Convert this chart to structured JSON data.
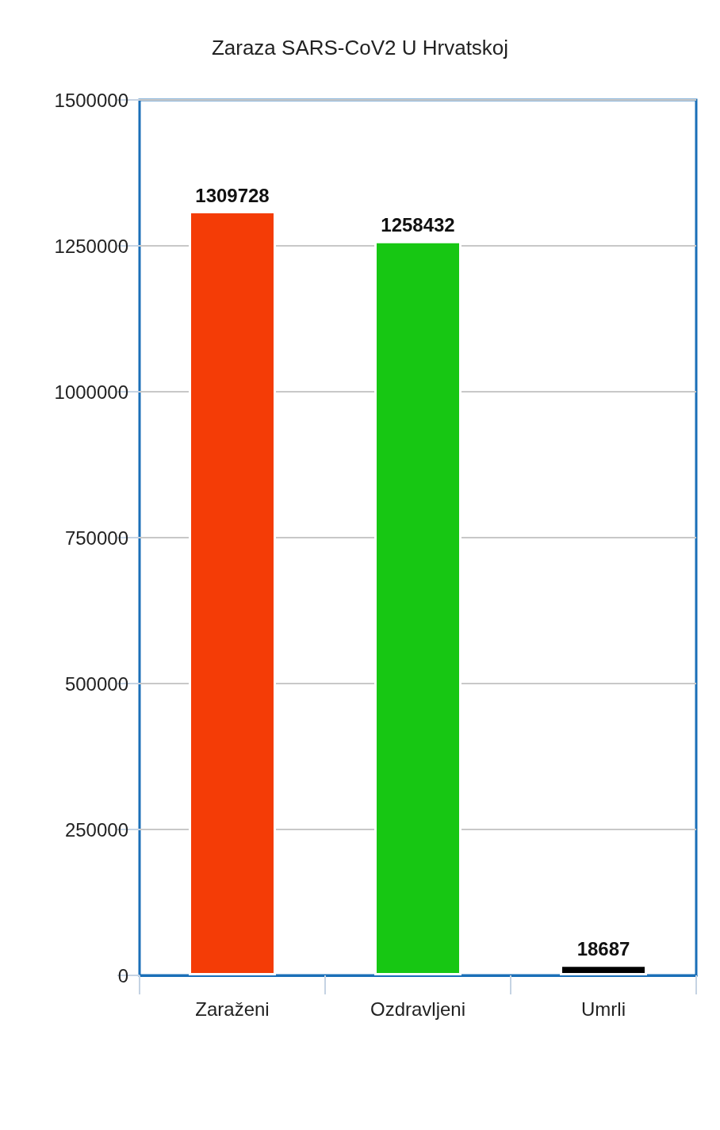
{
  "chart_data": {
    "type": "bar",
    "title": "Zaraza SARS-CoV2 U Hrvatskoj",
    "categories": [
      "Zaraženi",
      "Ozdravljeni",
      "Umrli"
    ],
    "values": [
      1309728,
      1258432,
      18687
    ],
    "colors": [
      "#f43c06",
      "#17c713",
      "#000000"
    ],
    "ylim": [
      0,
      1500000
    ],
    "yticks": [
      0,
      250000,
      500000,
      750000,
      1000000,
      1250000,
      1500000
    ],
    "grid": "y",
    "data_labels": true
  }
}
